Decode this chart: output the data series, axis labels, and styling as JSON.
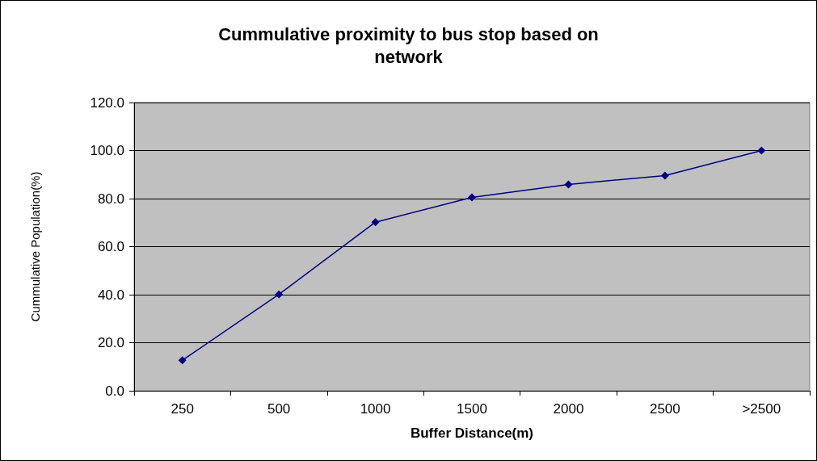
{
  "chart_data": {
    "type": "line",
    "title": "Cummulative proximity to bus stop based on\nnetwork",
    "xlabel": "Buffer Distance(m)",
    "ylabel": "Cummulative Population(%)",
    "categories": [
      "250",
      "500",
      "1000",
      "1500",
      "2000",
      "2500",
      ">2500"
    ],
    "series": [
      {
        "color": "#000080",
        "values": [
          12.7,
          40.1,
          70.2,
          80.5,
          85.9,
          89.6,
          100.0
        ]
      }
    ],
    "ylim": [
      0,
      120
    ],
    "yticks": [
      {
        "value": 0,
        "label": "0.0"
      },
      {
        "value": 20,
        "label": "20.0"
      },
      {
        "value": 40,
        "label": "40.0"
      },
      {
        "value": 60,
        "label": "60.0"
      },
      {
        "value": 80,
        "label": "80.0"
      },
      {
        "value": 100,
        "label": "100.0"
      },
      {
        "value": 120,
        "label": "120.0"
      }
    ],
    "grid": "y",
    "marker": "diamond",
    "line_style": "solid"
  }
}
